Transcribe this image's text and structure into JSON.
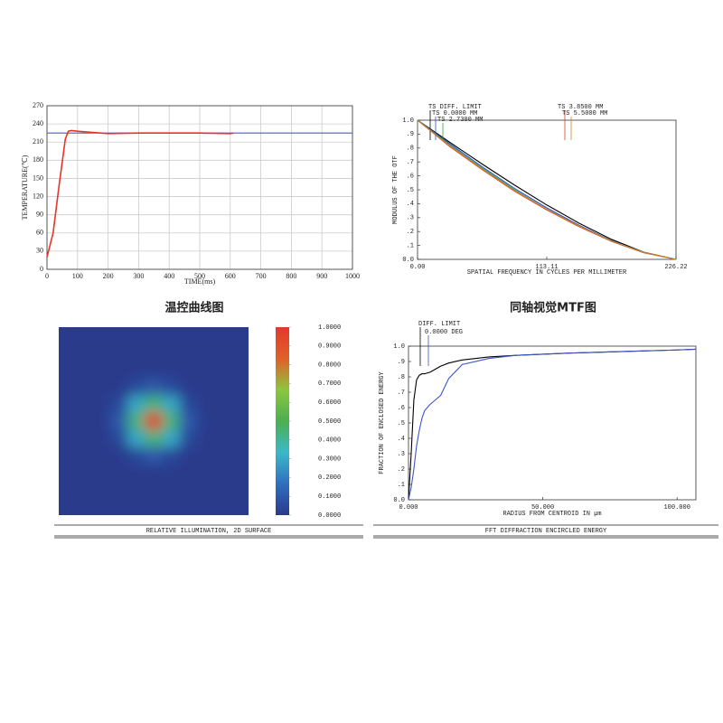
{
  "chart_data": [
    {
      "type": "line",
      "title": "温控曲线图",
      "x_label": "TIME(ms)",
      "y_label": "TEMPERATURE(℃)",
      "xlim": [
        0,
        1000
      ],
      "ylim": [
        0,
        270
      ],
      "xticks": [
        0,
        100,
        200,
        300,
        400,
        500,
        600,
        700,
        800,
        900,
        1000
      ],
      "yticks": [
        0,
        30,
        60,
        90,
        120,
        150,
        180,
        210,
        240,
        270
      ],
      "grid": true,
      "series": [
        {
          "color": "#4a5fc0",
          "x": [
            0,
            1000
          ],
          "values": [
            225,
            225
          ]
        },
        {
          "color": "#e8342a",
          "x": [
            0,
            20,
            40,
            60,
            70,
            80,
            100,
            150,
            200,
            300,
            400,
            500,
            600,
            610
          ],
          "values": [
            20,
            60,
            140,
            215,
            228,
            229,
            228,
            226,
            224,
            225,
            225,
            225,
            224,
            225
          ]
        }
      ]
    },
    {
      "type": "line",
      "title": "同轴视觉MTF图",
      "x_label": "SPATIAL FREQUENCY IN CYCLES PER MILLIMETER",
      "y_label": "MODULUS OF THE OTF",
      "xlim": [
        0,
        226.22
      ],
      "ylim": [
        0,
        1
      ],
      "xticks": [
        {
          "value": 0,
          "label": "0.00"
        },
        113.11,
        226.22
      ],
      "yticks": [
        {
          "value": 1,
          "label": "1.0"
        },
        {
          "value": 0.9,
          "label": ".9"
        },
        {
          "value": 0.8,
          "label": ".8"
        },
        {
          "value": 0.7,
          "label": ".7"
        },
        {
          "value": 0.6,
          "label": ".6"
        },
        {
          "value": 0.5,
          "label": ".5"
        },
        {
          "value": 0.4,
          "label": ".4"
        },
        {
          "value": 0.3,
          "label": ".3"
        },
        {
          "value": 0.2,
          "label": ".2"
        },
        {
          "value": 0.1,
          "label": ".1"
        },
        {
          "value": 0,
          "label": "0.0"
        }
      ],
      "grid": false,
      "x": [
        0,
        28.28,
        56.56,
        84.83,
        113.11,
        141.39,
        169.67,
        197.94,
        226.22
      ],
      "series": [
        {
          "name": "TS DIFF. LIMIT",
          "color": "#000000",
          "values": [
            1,
            0.841,
            0.685,
            0.534,
            0.391,
            0.26,
            0.144,
            0.052,
            0
          ]
        },
        {
          "name": "TS 0.0000 MM",
          "color": "#2b4fd6",
          "values": [
            1,
            0.83,
            0.665,
            0.51,
            0.37,
            0.245,
            0.135,
            0.05,
            0
          ]
        },
        {
          "name": "TS 2.7300 MM",
          "color": "#2aa04a",
          "values": [
            1,
            0.82,
            0.655,
            0.5,
            0.36,
            0.24,
            0.13,
            0.048,
            0
          ]
        },
        {
          "name": "TS 3.8500 MM",
          "color": "#d9412b",
          "values": [
            1,
            0.81,
            0.645,
            0.49,
            0.355,
            0.235,
            0.13,
            0.048,
            0
          ]
        },
        {
          "name": "TS 5.5000 MM",
          "color": "#c8882a",
          "values": [
            1,
            0.815,
            0.65,
            0.495,
            0.36,
            0.24,
            0.132,
            0.05,
            0
          ]
        }
      ]
    },
    {
      "type": "heatmap",
      "title": "RELATIVE ILLUMINATION, 2D SURFACE",
      "colormap": [
        "#2b3a8c",
        "#2f6fbf",
        "#3cb8c8",
        "#4caf50",
        "#8cc63f",
        "#e0602a",
        "#e03a2a"
      ],
      "colorbar_ticks": [
        {
          "value": 1,
          "label": "1.0000"
        },
        {
          "value": 0.9,
          "label": "0.9000"
        },
        {
          "value": 0.8,
          "label": "0.8000"
        },
        {
          "value": 0.7,
          "label": "0.7000"
        },
        {
          "value": 0.6,
          "label": "0.6000"
        },
        {
          "value": 0.5,
          "label": "0.5000"
        },
        {
          "value": 0.4,
          "label": "0.4000"
        },
        {
          "value": 0.3,
          "label": "0.3000"
        },
        {
          "value": 0.2,
          "label": "0.2000"
        },
        {
          "value": 0.1,
          "label": "0.1000"
        },
        {
          "value": 0,
          "label": "0.0000"
        }
      ],
      "values": [
        [
          0,
          0,
          0,
          0,
          0,
          0,
          0,
          0,
          0,
          0,
          0
        ],
        [
          0,
          0,
          0,
          0,
          0,
          0,
          0,
          0,
          0,
          0,
          0
        ],
        [
          0,
          0,
          0,
          0,
          0,
          0,
          0,
          0,
          0,
          0,
          0
        ],
        [
          0,
          0,
          0,
          0,
          0.05,
          0.1,
          0.05,
          0,
          0,
          0,
          0
        ],
        [
          0,
          0,
          0,
          0.05,
          0.3,
          0.45,
          0.3,
          0.05,
          0,
          0,
          0
        ],
        [
          0,
          0,
          0,
          0.1,
          0.45,
          1,
          0.45,
          0.1,
          0,
          0,
          0
        ],
        [
          0,
          0,
          0,
          0.05,
          0.3,
          0.45,
          0.3,
          0.05,
          0,
          0,
          0
        ],
        [
          0,
          0,
          0,
          0,
          0.05,
          0.1,
          0.05,
          0,
          0,
          0,
          0
        ],
        [
          0,
          0,
          0,
          0,
          0,
          0,
          0,
          0,
          0,
          0,
          0
        ],
        [
          0,
          0,
          0,
          0,
          0,
          0,
          0,
          0,
          0,
          0,
          0
        ],
        [
          0,
          0,
          0,
          0,
          0,
          0,
          0,
          0,
          0,
          0,
          0
        ]
      ]
    },
    {
      "type": "line",
      "title": "FFT DIFFRACTION ENCIRCLED ENERGY",
      "x_label": "RADIUS FROM CENTROID IN µm",
      "y_label": "FRACTION OF ENCLOSED ENERGY",
      "xlim": [
        0,
        107
      ],
      "ylim": [
        0,
        1
      ],
      "xticks": [
        {
          "value": 0,
          "label": "0.000"
        },
        {
          "value": 50,
          "label": "50.000"
        },
        {
          "value": 100,
          "label": "100.000"
        }
      ],
      "yticks": [
        {
          "value": 1,
          "label": "1.0"
        },
        {
          "value": 0.9,
          "label": ".9"
        },
        {
          "value": 0.8,
          "label": ".8"
        },
        {
          "value": 0.7,
          "label": ".7"
        },
        {
          "value": 0.6,
          "label": ".6"
        },
        {
          "value": 0.5,
          "label": ".5"
        },
        {
          "value": 0.4,
          "label": ".4"
        },
        {
          "value": 0.3,
          "label": ".3"
        },
        {
          "value": 0.2,
          "label": ".2"
        },
        {
          "value": 0.1,
          "label": ".1"
        },
        {
          "value": 0,
          "label": "0.0"
        }
      ],
      "grid": false,
      "x": [
        0,
        1,
        2,
        3,
        4,
        5,
        6,
        8,
        10,
        12,
        15,
        20,
        30,
        40,
        60,
        80,
        100,
        107
      ],
      "series": [
        {
          "name": "DIFF. LIMIT",
          "color": "#000000",
          "values": [
            0,
            0.3,
            0.65,
            0.78,
            0.81,
            0.82,
            0.82,
            0.83,
            0.85,
            0.87,
            0.89,
            0.91,
            0.93,
            0.94,
            0.955,
            0.965,
            0.975,
            0.98
          ]
        },
        {
          "name": "0.0000 DEG",
          "color": "#3b55c8",
          "values": [
            0,
            0.08,
            0.2,
            0.35,
            0.45,
            0.53,
            0.58,
            0.62,
            0.65,
            0.68,
            0.79,
            0.88,
            0.92,
            0.94,
            0.955,
            0.965,
            0.975,
            0.98
          ]
        }
      ]
    }
  ]
}
